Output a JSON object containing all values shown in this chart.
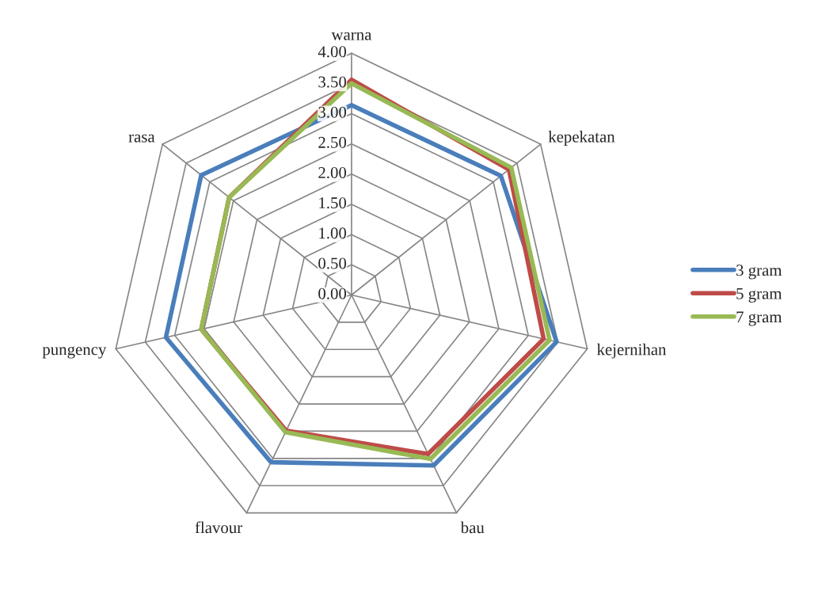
{
  "chart_data": {
    "type": "radar",
    "categories": [
      "warna",
      "kepekatan",
      "kejernihan",
      "bau",
      "flavour",
      "pungency",
      "rasa"
    ],
    "series": [
      {
        "name": "3 gram",
        "color": "#4a7ebb",
        "values": [
          3.14,
          3.16,
          3.48,
          3.13,
          3.07,
          3.15,
          3.18
        ]
      },
      {
        "name": "5 gram",
        "color": "#be4b48",
        "values": [
          3.56,
          3.33,
          3.26,
          2.92,
          2.49,
          2.55,
          2.59
        ]
      },
      {
        "name": "7 gram",
        "color": "#98b954",
        "values": [
          3.5,
          3.38,
          3.36,
          3.01,
          2.52,
          2.55,
          2.59
        ]
      }
    ],
    "ylim": [
      0,
      4
    ],
    "yticks": [
      {
        "value": 0,
        "label": "0.00"
      },
      {
        "value": 0.5,
        "label": "0.50"
      },
      {
        "value": 1,
        "label": "1.00"
      },
      {
        "value": 1.5,
        "label": "1.50"
      },
      {
        "value": 2,
        "label": "2.00"
      },
      {
        "value": 2.5,
        "label": "2.50"
      },
      {
        "value": 3,
        "label": "3.00"
      },
      {
        "value": 3.5,
        "label": "3.50"
      },
      {
        "value": 4,
        "label": "4.00"
      }
    ],
    "grid": true,
    "legend": "right"
  }
}
